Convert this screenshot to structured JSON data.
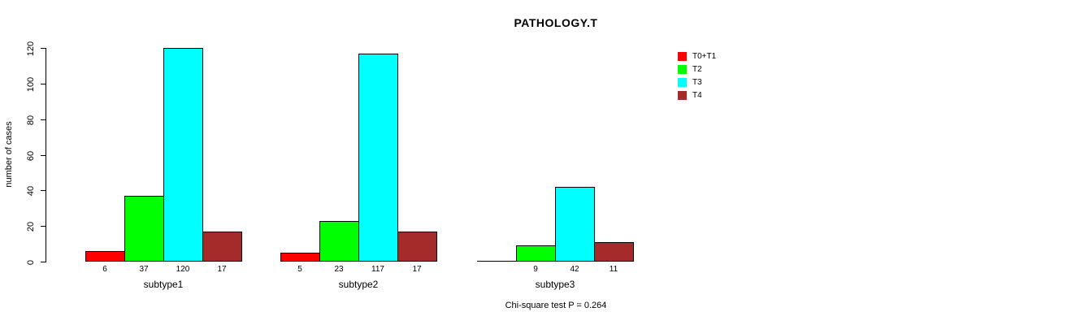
{
  "chart_data": {
    "type": "bar",
    "title": "PATHOLOGY.T",
    "ylabel": "number of cases",
    "xlabel": "",
    "yticks": [
      0,
      20,
      40,
      60,
      80,
      100,
      120
    ],
    "ylim": [
      0,
      120
    ],
    "grid": false,
    "legend_position": "top-right",
    "categories": [
      "subtype1",
      "subtype2",
      "subtype3"
    ],
    "series": [
      {
        "name": "T0+T1",
        "color": "#ff0000",
        "values": [
          6,
          5,
          0
        ]
      },
      {
        "name": "T2",
        "color": "#00ff00",
        "values": [
          37,
          23,
          9
        ]
      },
      {
        "name": "T3",
        "color": "#00ffff",
        "values": [
          120,
          117,
          42
        ]
      },
      {
        "name": "T4",
        "color": "#a52a2a",
        "values": [
          17,
          17,
          11
        ]
      }
    ],
    "bar_value_labels": [
      [
        "6",
        "37",
        "120",
        "17"
      ],
      [
        "5",
        "23",
        "117",
        "17"
      ],
      [
        "",
        "9",
        "42",
        "11"
      ]
    ],
    "annotation": "Chi-square test P = 0.264"
  },
  "colors": {
    "background": "#ffffff",
    "axis": "#000000",
    "text": "#000000"
  }
}
